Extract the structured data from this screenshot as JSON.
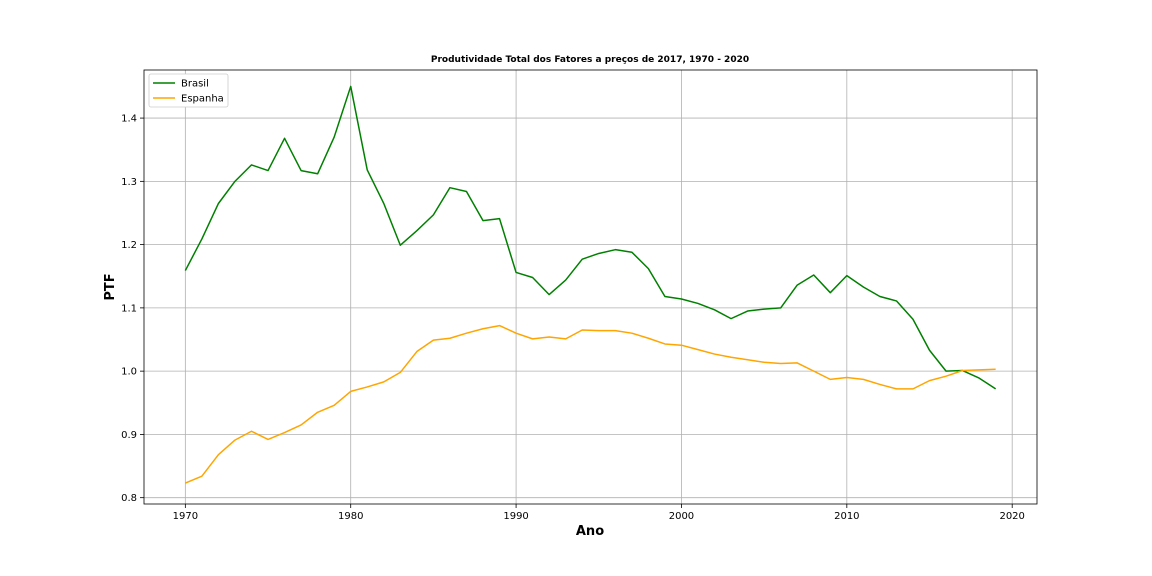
{
  "chart_data": {
    "type": "line",
    "title": "Produtividade Total dos Fatores a preços de 2017, 1970 - 2020",
    "xlabel": "Ano",
    "ylabel": "PTF",
    "xlim": [
      1967.5,
      2021.5
    ],
    "ylim": [
      0.79,
      1.476
    ],
    "xticks": [
      1970,
      1980,
      1990,
      2000,
      2010,
      2020
    ],
    "yticks": [
      0.8,
      0.9,
      1.0,
      1.1,
      1.2,
      1.3,
      1.4
    ],
    "ytick_labels": [
      "0.8",
      "0.9",
      "1.0",
      "1.1",
      "1.2",
      "1.3",
      "1.4"
    ],
    "grid": true,
    "legend_position": "upper-left",
    "x": [
      1970,
      1971,
      1972,
      1973,
      1974,
      1975,
      1976,
      1977,
      1978,
      1979,
      1980,
      1981,
      1982,
      1983,
      1984,
      1985,
      1986,
      1987,
      1988,
      1989,
      1990,
      1991,
      1992,
      1993,
      1994,
      1995,
      1996,
      1997,
      1998,
      1999,
      2000,
      2001,
      2002,
      2003,
      2004,
      2005,
      2006,
      2007,
      2008,
      2009,
      2010,
      2011,
      2012,
      2013,
      2014,
      2015,
      2016,
      2017,
      2018,
      2019
    ],
    "series": [
      {
        "name": "Brasil",
        "color": "#008000",
        "values": [
          1.159,
          1.209,
          1.265,
          1.3,
          1.326,
          1.317,
          1.368,
          1.317,
          1.312,
          1.37,
          1.45,
          1.318,
          1.265,
          1.199,
          1.222,
          1.247,
          1.29,
          1.284,
          1.238,
          1.241,
          1.156,
          1.148,
          1.121,
          1.144,
          1.177,
          1.186,
          1.192,
          1.188,
          1.162,
          1.118,
          1.114,
          1.107,
          1.097,
          1.083,
          1.095,
          1.098,
          1.1,
          1.136,
          1.152,
          1.124,
          1.151,
          1.133,
          1.118,
          1.111,
          1.082,
          1.033,
          1.0,
          1.001,
          0.989,
          0.972
        ]
      },
      {
        "name": "Espanha",
        "color": "#ffa500",
        "values": [
          0.823,
          0.834,
          0.868,
          0.891,
          0.905,
          0.892,
          0.903,
          0.915,
          0.935,
          0.946,
          0.968,
          0.975,
          0.983,
          0.998,
          1.031,
          1.049,
          1.052,
          1.06,
          1.067,
          1.072,
          1.06,
          1.051,
          1.054,
          1.051,
          1.065,
          1.064,
          1.064,
          1.06,
          1.052,
          1.043,
          1.041,
          1.034,
          1.027,
          1.022,
          1.018,
          1.014,
          1.012,
          1.013,
          1.0,
          0.987,
          0.99,
          0.987,
          0.979,
          0.972,
          0.972,
          0.985,
          0.992,
          1.001,
          1.002,
          1.003
        ]
      }
    ]
  }
}
